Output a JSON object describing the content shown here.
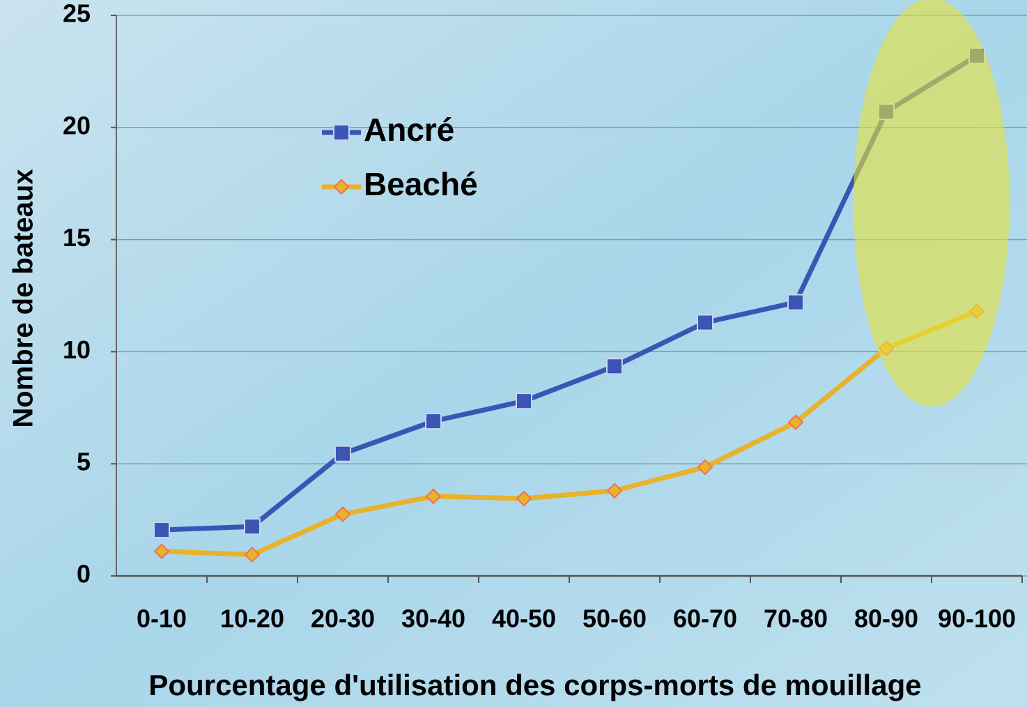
{
  "chart_data": {
    "type": "line",
    "x_label": "Pourcentage d'utilisation des corps-morts de mouillage",
    "y_label": "Nombre de bateaux",
    "categories": [
      "0-10",
      "10-20",
      "20-30",
      "30-40",
      "40-50",
      "50-60",
      "60-70",
      "70-80",
      "80-90",
      "90-100"
    ],
    "series": [
      {
        "name": "Ancré",
        "color": "#3a55b4",
        "marker": "square",
        "values": [
          2.05,
          2.2,
          5.45,
          6.9,
          7.8,
          9.35,
          11.3,
          12.2,
          20.7,
          23.2
        ]
      },
      {
        "name": "Beaché",
        "color": "#e8b22a",
        "marker": "diamond",
        "values": [
          1.1,
          0.95,
          2.75,
          3.55,
          3.45,
          3.8,
          4.85,
          6.85,
          10.15,
          11.8
        ]
      }
    ],
    "ylim": [
      0,
      25
    ],
    "yticks": [
      0,
      5,
      10,
      15,
      20,
      25
    ],
    "grid": true
  }
}
